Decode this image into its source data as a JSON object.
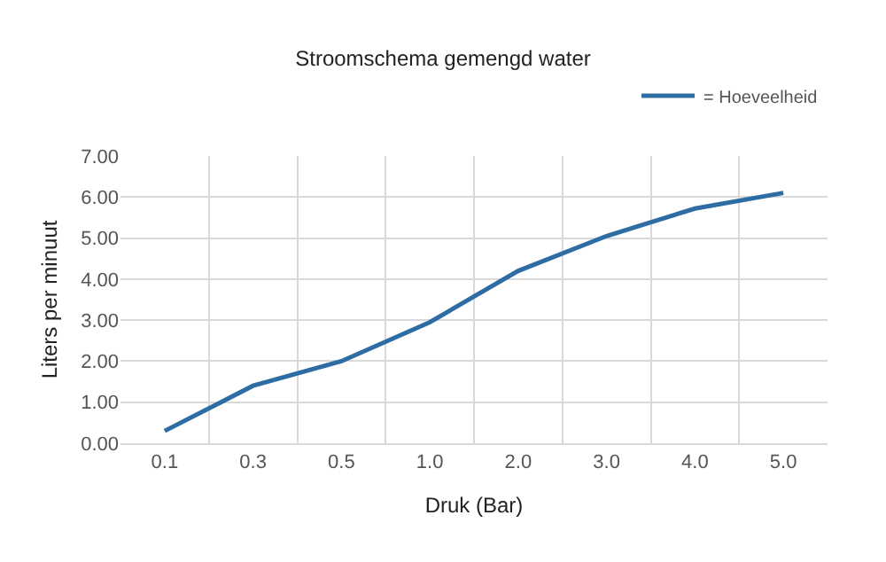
{
  "chart_data": {
    "type": "line",
    "title": "Stroomschema gemengd water",
    "xlabel": "Druk (Bar)",
    "ylabel": "Liters per minuut",
    "categories": [
      "0.1",
      "0.3",
      "0.5",
      "1.0",
      "2.0",
      "3.0",
      "4.0",
      "5.0"
    ],
    "series": [
      {
        "name": "= Hoeveelheid",
        "color": "#2e6da4",
        "values": [
          0.3,
          1.4,
          2.0,
          2.95,
          4.2,
          5.05,
          5.72,
          6.1
        ]
      }
    ],
    "ylim": [
      0,
      7
    ],
    "yticks": [
      {
        "value": 0,
        "label": "0.00"
      },
      {
        "value": 1,
        "label": "1.00"
      },
      {
        "value": 2,
        "label": "2.00"
      },
      {
        "value": 3,
        "label": "3.00"
      },
      {
        "value": 4,
        "label": "4.00"
      },
      {
        "value": 5,
        "label": "5.00"
      },
      {
        "value": 6,
        "label": "6.00"
      },
      {
        "value": 7,
        "label": "7.00"
      }
    ],
    "grid": true,
    "legend": "top right",
    "marker": "none",
    "line_style": "solid"
  }
}
